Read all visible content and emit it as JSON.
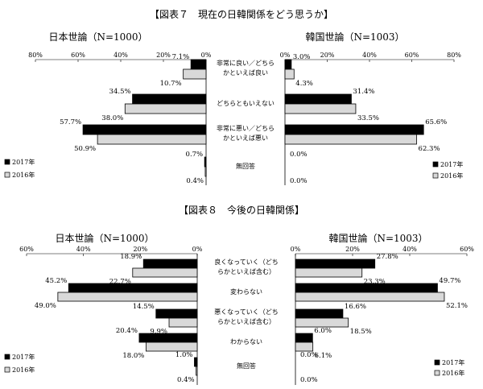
{
  "chart_data": [
    {
      "type": "bar",
      "title": "【図表７　現在の日韓関係をどう思うか】",
      "categories": [
        "非常に良い／どちら|かといえば良い",
        "どちらともいえない",
        "非常に悪い／どちら|かといえば悪い",
        "無回答"
      ],
      "axis_ticks": [
        "0%",
        "20%",
        "40%",
        "60%",
        "80%"
      ],
      "legend": [
        "2017年",
        "2016年"
      ],
      "legend_position": "bottom-left",
      "panels": [
        {
          "side": "left",
          "title": "日本世論（N=1000）",
          "xlim": [
            0,
            80
          ],
          "series": [
            {
              "name": "2017年",
              "color": "#000000",
              "values": [
                7.1,
                34.5,
                57.7,
                0.7
              ],
              "labels": [
                "7.1%",
                "34.5%",
                "57.7%",
                "0.7%"
              ]
            },
            {
              "name": "2016年",
              "color": "#d9d9d9",
              "values": [
                10.7,
                38.0,
                50.9,
                0.4
              ],
              "labels": [
                "10.7%",
                "38.0%",
                "50.9%",
                "0.4%"
              ]
            }
          ]
        },
        {
          "side": "right",
          "title": "韓国世論（N=1003）",
          "xlim": [
            0,
            80
          ],
          "series": [
            {
              "name": "2017年",
              "color": "#000000",
              "values": [
                3.0,
                31.4,
                65.6,
                0.0
              ],
              "labels": [
                "3.0%",
                "31.4%",
                "65.6%",
                "0.0%"
              ]
            },
            {
              "name": "2016年",
              "color": "#d9d9d9",
              "values": [
                4.3,
                33.5,
                62.3,
                0.0
              ],
              "labels": [
                "4.3%",
                "33.5%",
                "62.3%",
                "0.0%"
              ]
            }
          ]
        }
      ]
    },
    {
      "type": "bar",
      "title": "【図表８　今後の日韓関係】",
      "categories": [
        "良くなっていく（どち|らかといえば含む）",
        "変わらない",
        "悪くなっていく（どち|らかといえば含む）",
        "わからない",
        "無回答"
      ],
      "axis_ticks": [
        "0%",
        "20%",
        "40%",
        "60%"
      ],
      "legend": [
        "2017年",
        "2016年"
      ],
      "legend_position": "bottom-left",
      "panels": [
        {
          "side": "left",
          "title": "日本世論（N=1000）",
          "xlim": [
            0,
            60
          ],
          "series": [
            {
              "name": "2017年",
              "color": "#000000",
              "values": [
                18.9,
                45.2,
                14.5,
                20.4,
                1.0
              ],
              "labels": [
                "18.9%",
                "45.2%",
                "14.5%",
                "20.4%",
                "1.0%"
              ]
            },
            {
              "name": "2016年",
              "color": "#d9d9d9",
              "values": [
                22.7,
                49.0,
                9.9,
                18.0,
                0.4
              ],
              "labels": [
                "22.7%",
                "49.0%",
                "9.9%",
                "18.0%",
                "0.4%"
              ]
            }
          ]
        },
        {
          "side": "right",
          "title": "韓国世論（N=1003）",
          "xlim": [
            0,
            60
          ],
          "series": [
            {
              "name": "2017年",
              "color": "#000000",
              "values": [
                27.8,
                49.7,
                16.6,
                6.0,
                0.0
              ],
              "labels": [
                "27.8%",
                "49.7%",
                "16.6%",
                "6.0%",
                "0.0%"
              ]
            },
            {
              "name": "2016年",
              "color": "#d9d9d9",
              "values": [
                23.3,
                52.1,
                18.5,
                6.1,
                0.0
              ],
              "labels": [
                "23.3%",
                "52.1%",
                "18.5%",
                "6.1%",
                "0.0%"
              ]
            }
          ]
        }
      ]
    }
  ]
}
